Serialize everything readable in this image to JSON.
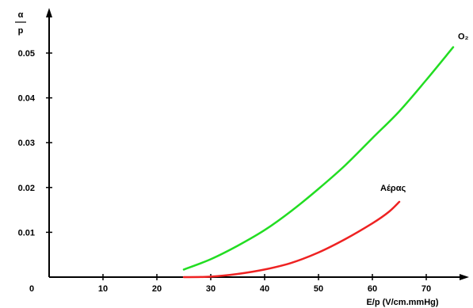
{
  "chart_data": {
    "type": "line",
    "title": "",
    "xlabel": "E/p (V/cm.mmHg)",
    "ylabel_numerator": "α",
    "ylabel_denominator": "p",
    "xlim": [
      0,
      80
    ],
    "ylim": [
      0,
      0.06
    ],
    "x_ticks": [
      0,
      10,
      20,
      30,
      40,
      50,
      60,
      70
    ],
    "x_tick_labels": [
      "0",
      "10",
      "20",
      "30",
      "40",
      "50",
      "60",
      "70"
    ],
    "y_ticks": [
      0.01,
      0.02,
      0.03,
      0.04,
      0.05
    ],
    "y_tick_labels": [
      "0.01",
      "0.02",
      "0.03",
      "0.04",
      "0.05"
    ],
    "grid": false,
    "legend": "none",
    "series": [
      {
        "name": "O₂",
        "color": "#22dd22",
        "x": [
          25,
          30,
          35,
          40,
          45,
          50,
          55,
          60,
          65,
          70,
          75
        ],
        "y": [
          0.0017,
          0.004,
          0.007,
          0.0105,
          0.0148,
          0.0197,
          0.025,
          0.031,
          0.037,
          0.044,
          0.0513
        ]
      },
      {
        "name": "Αέρας",
        "color": "#ee2222",
        "x": [
          25,
          30,
          35,
          40,
          45,
          50,
          55,
          60,
          63,
          65
        ],
        "y": [
          0,
          0.0001,
          0.0007,
          0.0017,
          0.0032,
          0.0055,
          0.0085,
          0.012,
          0.0145,
          0.0168
        ]
      }
    ]
  }
}
